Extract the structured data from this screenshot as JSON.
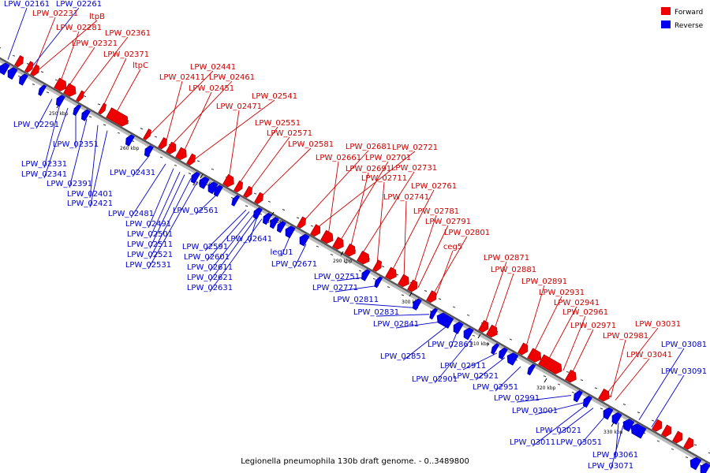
{
  "caption": "Legionella pneumophila 130b draft genome. - 0..3489800",
  "legend": {
    "forward_label": "Forward",
    "reverse_label": "Reverse",
    "forward_color": "#ee0000",
    "reverse_color": "#0000ee"
  },
  "colors": {
    "forward": "#ee0000",
    "reverse": "#0000ee",
    "forward_text": "#cc0000",
    "reverse_text": "#0000cc",
    "axis": "#555555"
  },
  "kbp_ticks": [
    "250 kbp",
    "260 kbp",
    "270 kbp",
    "280 kbp",
    "290 kbp",
    "300 kbp",
    "310 kbp",
    "320 kbp",
    "330 kbp"
  ],
  "forward_labels": [
    "LPW_02231",
    "ltpB",
    "LPW_02281",
    "LPW_02321",
    "LPW_02361",
    "LPW_02371",
    "ltpC",
    "LPW_02441",
    "LPW_02411",
    "LPW_02461",
    "LPW_02451",
    "LPW_02541",
    "LPW_02471",
    "LPW_02551",
    "LPW_02571",
    "LPW_02581",
    "LPW_02681",
    "LPW_02721",
    "LPW_02661",
    "LPW_02701",
    "LPW_02691",
    "LPW_02731",
    "LPW_02711",
    "LPW_02761",
    "LPW_02741",
    "LPW_02781",
    "LPW_02791",
    "LPW_02801",
    "ceg5",
    "LPW_02871",
    "LPW_02881",
    "LPW_02891",
    "LPW_02931",
    "LPW_02941",
    "LPW_02961",
    "LPW_02971",
    "LPW_03031",
    "LPW_02981",
    "LPW_03041"
  ],
  "reverse_labels": [
    "LPW_02161",
    "LPW_02261",
    "LPW_02291",
    "LPW_02351",
    "LPW_02331",
    "LPW_02341",
    "LPW_02431",
    "LPW_02391",
    "LPW_02401",
    "LPW_02421",
    "LPW_02481",
    "LPW_02561",
    "LPW_02491",
    "LPW_02501",
    "LPW_02511",
    "LPW_02521",
    "LPW_02531",
    "LPW_02641",
    "LPW_02591",
    "LPW_02601",
    "LPW_02611",
    "LPW_02621",
    "LPW_02631",
    "legU1",
    "LPW_02671",
    "LPW_02751",
    "LPW_02771",
    "LPW_02811",
    "LPW_02831",
    "LPW_02841",
    "LPW_02861",
    "LPW_02851",
    "LPW_02911",
    "LPW_02921",
    "LPW_02901",
    "LPW_02951",
    "LPW_02991",
    "LPW_03001",
    "LPW_03021",
    "LPW_03011",
    "LPW_03051",
    "LPW_03061",
    "LPW_03071",
    "LPW_03081",
    "LPW_03091"
  ]
}
